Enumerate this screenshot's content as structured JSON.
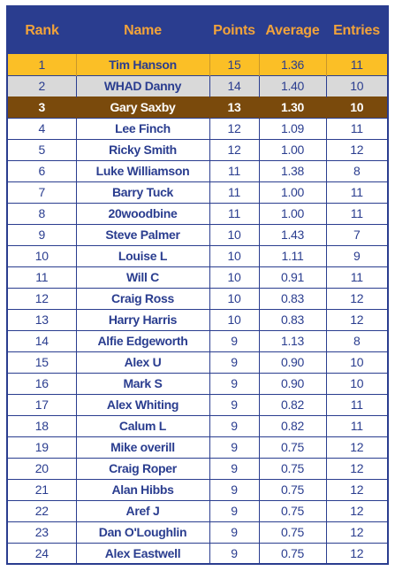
{
  "headers": [
    "Rank",
    "Name",
    "Points",
    "Average",
    "Entries"
  ],
  "colors": {
    "header_bg": "#2a3d8f",
    "header_text": "#f2a33a",
    "body_text": "#2a3d8f",
    "gold": "#fbbf26",
    "silver": "#d9d9d9",
    "bronze": "#7a4a0c"
  },
  "rows": [
    {
      "rank": "1",
      "name": "Tim Hanson",
      "points": "15",
      "average": "1.36",
      "entries": "11",
      "highlight": "gold"
    },
    {
      "rank": "2",
      "name": "WHAD Danny",
      "points": "14",
      "average": "1.40",
      "entries": "10",
      "highlight": "silver"
    },
    {
      "rank": "3",
      "name": "Gary Saxby",
      "points": "13",
      "average": "1.30",
      "entries": "10",
      "highlight": "bronze"
    },
    {
      "rank": "4",
      "name": "Lee Finch",
      "points": "12",
      "average": "1.09",
      "entries": "11",
      "highlight": ""
    },
    {
      "rank": "5",
      "name": "Ricky Smith",
      "points": "12",
      "average": "1.00",
      "entries": "12",
      "highlight": ""
    },
    {
      "rank": "6",
      "name": "Luke Williamson",
      "points": "11",
      "average": "1.38",
      "entries": "8",
      "highlight": ""
    },
    {
      "rank": "7",
      "name": "Barry Tuck",
      "points": "11",
      "average": "1.00",
      "entries": "11",
      "highlight": ""
    },
    {
      "rank": "8",
      "name": "20woodbine",
      "points": "11",
      "average": "1.00",
      "entries": "11",
      "highlight": ""
    },
    {
      "rank": "9",
      "name": "Steve Palmer",
      "points": "10",
      "average": "1.43",
      "entries": "7",
      "highlight": ""
    },
    {
      "rank": "10",
      "name": "Louise L",
      "points": "10",
      "average": "1.11",
      "entries": "9",
      "highlight": ""
    },
    {
      "rank": "11",
      "name": "Will C",
      "points": "10",
      "average": "0.91",
      "entries": "11",
      "highlight": ""
    },
    {
      "rank": "12",
      "name": "Craig Ross",
      "points": "10",
      "average": "0.83",
      "entries": "12",
      "highlight": ""
    },
    {
      "rank": "13",
      "name": "Harry Harris",
      "points": "10",
      "average": "0.83",
      "entries": "12",
      "highlight": ""
    },
    {
      "rank": "14",
      "name": "Alfie Edgeworth",
      "points": "9",
      "average": "1.13",
      "entries": "8",
      "highlight": ""
    },
    {
      "rank": "15",
      "name": "Alex U",
      "points": "9",
      "average": "0.90",
      "entries": "10",
      "highlight": ""
    },
    {
      "rank": "16",
      "name": "Mark S",
      "points": "9",
      "average": "0.90",
      "entries": "10",
      "highlight": ""
    },
    {
      "rank": "17",
      "name": "Alex Whiting",
      "points": "9",
      "average": "0.82",
      "entries": "11",
      "highlight": ""
    },
    {
      "rank": "18",
      "name": "Calum L",
      "points": "9",
      "average": "0.82",
      "entries": "11",
      "highlight": ""
    },
    {
      "rank": "19",
      "name": "Mike overill",
      "points": "9",
      "average": "0.75",
      "entries": "12",
      "highlight": ""
    },
    {
      "rank": "20",
      "name": "Craig Roper",
      "points": "9",
      "average": "0.75",
      "entries": "12",
      "highlight": ""
    },
    {
      "rank": "21",
      "name": "Alan Hibbs",
      "points": "9",
      "average": "0.75",
      "entries": "12",
      "highlight": ""
    },
    {
      "rank": "22",
      "name": "Aref J",
      "points": "9",
      "average": "0.75",
      "entries": "12",
      "highlight": ""
    },
    {
      "rank": "23",
      "name": "Dan O'Loughlin",
      "points": "9",
      "average": "0.75",
      "entries": "12",
      "highlight": ""
    },
    {
      "rank": "24",
      "name": "Alex Eastwell",
      "points": "9",
      "average": "0.75",
      "entries": "12",
      "highlight": ""
    }
  ]
}
